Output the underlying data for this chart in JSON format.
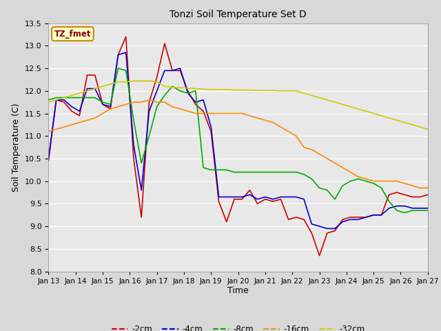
{
  "title": "Tonzi Soil Temperature Set D",
  "xlabel": "Time",
  "ylabel": "Soil Temperature (C)",
  "ylim": [
    8.0,
    13.5
  ],
  "yticks": [
    8.0,
    8.5,
    9.0,
    9.5,
    10.0,
    10.5,
    11.0,
    11.5,
    12.0,
    12.5,
    13.0,
    13.5
  ],
  "xtick_labels": [
    "Jan 13",
    "Jan 14",
    "Jan 15",
    "Jan 16",
    "Jan 17",
    "Jan 18",
    "Jan 19",
    "Jan 20",
    "Jan 21",
    "Jan 22",
    "Jan 23",
    "Jan 24",
    "Jan 25",
    "Jan 26",
    "Jan 27"
  ],
  "colors": {
    "-2cm": "#cc0000",
    "-4cm": "#0000cc",
    "-8cm": "#00aa00",
    "-16cm": "#ff8800",
    "-32cm": "#cccc00"
  },
  "legend_label": "TZ_fmet",
  "legend_bg": "#ffffcc",
  "legend_border": "#cc8800",
  "series": {
    "-2cm": [
      10.45,
      11.8,
      11.75,
      11.55,
      11.45,
      12.35,
      12.35,
      11.7,
      11.6,
      12.8,
      13.2,
      10.5,
      9.2,
      11.75,
      12.3,
      13.05,
      12.45,
      12.45,
      12.0,
      11.7,
      11.55,
      11.1,
      9.55,
      9.1,
      9.6,
      9.6,
      9.8,
      9.5,
      9.6,
      9.55,
      9.6,
      9.15,
      9.2,
      9.15,
      8.85,
      8.35,
      8.85,
      8.9,
      9.15,
      9.2,
      9.2,
      9.2,
      9.25,
      9.25,
      9.7,
      9.75,
      9.7,
      9.65,
      9.65,
      9.7
    ],
    "-4cm": [
      10.5,
      11.8,
      11.8,
      11.65,
      11.55,
      12.05,
      12.05,
      11.7,
      11.65,
      12.8,
      12.85,
      10.8,
      9.8,
      11.55,
      12.0,
      12.45,
      12.45,
      12.5,
      11.95,
      11.75,
      11.8,
      11.2,
      9.65,
      9.65,
      9.65,
      9.65,
      9.7,
      9.6,
      9.65,
      9.6,
      9.65,
      9.65,
      9.65,
      9.6,
      9.05,
      9.0,
      8.95,
      8.95,
      9.1,
      9.15,
      9.15,
      9.2,
      9.25,
      9.25,
      9.4,
      9.45,
      9.45,
      9.4,
      9.4,
      9.4
    ],
    "-8cm": [
      11.8,
      11.85,
      11.85,
      11.85,
      11.85,
      11.85,
      11.85,
      11.75,
      11.7,
      12.5,
      12.45,
      11.35,
      10.4,
      11.0,
      11.65,
      11.9,
      12.1,
      12.0,
      11.95,
      12.0,
      10.3,
      10.25,
      10.25,
      10.25,
      10.2,
      10.2,
      10.2,
      10.2,
      10.2,
      10.2,
      10.2,
      10.2,
      10.2,
      10.15,
      10.05,
      9.85,
      9.8,
      9.6,
      9.9,
      10.0,
      10.05,
      10.0,
      9.95,
      9.85,
      9.55,
      9.35,
      9.3,
      9.35,
      9.35,
      9.35
    ],
    "-16cm": [
      11.1,
      11.15,
      11.2,
      11.25,
      11.3,
      11.35,
      11.4,
      11.5,
      11.6,
      11.65,
      11.7,
      11.75,
      11.75,
      11.8,
      11.75,
      11.75,
      11.65,
      11.6,
      11.55,
      11.5,
      11.5,
      11.5,
      11.5,
      11.5,
      11.5,
      11.5,
      11.45,
      11.4,
      11.35,
      11.3,
      11.2,
      11.1,
      11.0,
      10.75,
      10.7,
      10.6,
      10.5,
      10.4,
      10.3,
      10.2,
      10.1,
      10.05,
      10.0,
      10.0,
      10.0,
      10.0,
      9.95,
      9.9,
      9.85,
      9.85
    ],
    "-32cm": [
      11.75,
      11.8,
      11.85,
      11.9,
      11.95,
      12.0,
      12.05,
      12.1,
      12.15,
      12.2,
      12.2,
      12.22,
      12.22,
      12.22,
      12.2,
      12.1,
      12.08,
      12.07,
      12.06,
      12.05,
      12.04,
      12.03,
      12.03,
      12.03,
      12.02,
      12.02,
      12.02,
      12.01,
      12.01,
      12.01,
      12.0,
      12.0,
      12.0,
      11.95,
      11.9,
      11.85,
      11.8,
      11.75,
      11.7,
      11.65,
      11.6,
      11.55,
      11.5,
      11.45,
      11.4,
      11.35,
      11.3,
      11.25,
      11.2,
      11.15
    ]
  },
  "num_days": 14
}
